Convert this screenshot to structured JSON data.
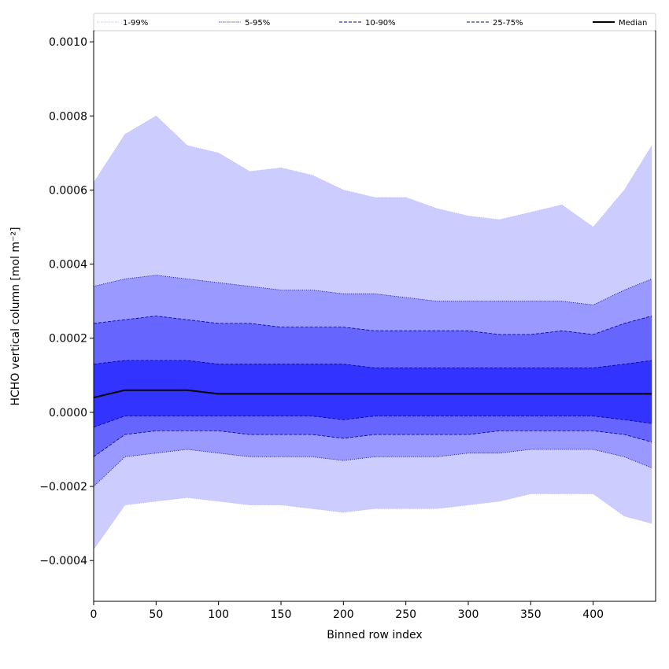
{
  "chart_data": {
    "type": "area",
    "xlabel": "Binned row index",
    "ylabel": "HCHO vertical column [mol m⁻²]",
    "xlim": [
      0,
      450
    ],
    "ylim": [
      -0.00051,
      0.00103
    ],
    "xticks": [
      0,
      50,
      100,
      150,
      200,
      250,
      300,
      350,
      400
    ],
    "xtick_labels": [
      "0",
      "50",
      "100",
      "150",
      "200",
      "250",
      "300",
      "350",
      "400"
    ],
    "yticks": [
      -0.0004,
      -0.0002,
      0.0,
      0.0002,
      0.0004,
      0.0006,
      0.0008,
      0.001
    ],
    "ytick_labels": [
      "−0.0004",
      "−0.0002",
      "0.0000",
      "0.0002",
      "0.0004",
      "0.0006",
      "0.0008",
      "0.0010"
    ],
    "grid": false,
    "legend_position": "top",
    "x": [
      0,
      25,
      50,
      75,
      100,
      125,
      150,
      175,
      200,
      225,
      250,
      275,
      300,
      325,
      350,
      375,
      400,
      425,
      447
    ],
    "series": [
      {
        "name": "1-99%",
        "style": "dotted",
        "line_color": "#b3b3ff",
        "fill_color": "#ccccff",
        "lower": [
          -0.00037,
          -0.00025,
          -0.00024,
          -0.00023,
          -0.00024,
          -0.00025,
          -0.00025,
          -0.00026,
          -0.00027,
          -0.00026,
          -0.00026,
          -0.00026,
          -0.00025,
          -0.00024,
          -0.00022,
          -0.00022,
          -0.00022,
          -0.00028,
          -0.0003
        ],
        "upper": [
          0.00062,
          0.00075,
          0.0008,
          0.00072,
          0.0007,
          0.00065,
          0.00066,
          0.00064,
          0.0006,
          0.00058,
          0.00058,
          0.00055,
          0.00053,
          0.00052,
          0.00054,
          0.00056,
          0.0005,
          0.0006,
          0.00072
        ]
      },
      {
        "name": "5-95%",
        "style": "dotted",
        "line_color": "#00008b",
        "fill_color": "#9999ff",
        "lower": [
          -0.0002,
          -0.00012,
          -0.00011,
          -0.0001,
          -0.00011,
          -0.00012,
          -0.00012,
          -0.00012,
          -0.00013,
          -0.00012,
          -0.00012,
          -0.00012,
          -0.00011,
          -0.00011,
          -0.0001,
          -0.0001,
          -0.0001,
          -0.00012,
          -0.00015
        ],
        "upper": [
          0.00034,
          0.00036,
          0.00037,
          0.00036,
          0.00035,
          0.00034,
          0.00033,
          0.00033,
          0.00032,
          0.00032,
          0.00031,
          0.0003,
          0.0003,
          0.0003,
          0.0003,
          0.0003,
          0.00029,
          0.00033,
          0.00036
        ]
      },
      {
        "name": "10-90%",
        "style": "dashed",
        "line_color": "#00008b",
        "fill_color": "#6666ff",
        "lower": [
          -0.00012,
          -6e-05,
          -5e-05,
          -5e-05,
          -5e-05,
          -6e-05,
          -6e-05,
          -6e-05,
          -7e-05,
          -6e-05,
          -6e-05,
          -6e-05,
          -6e-05,
          -5e-05,
          -5e-05,
          -5e-05,
          -5e-05,
          -6e-05,
          -8e-05
        ],
        "upper": [
          0.00024,
          0.00025,
          0.00026,
          0.00025,
          0.00024,
          0.00024,
          0.00023,
          0.00023,
          0.00023,
          0.00022,
          0.00022,
          0.00022,
          0.00022,
          0.00021,
          0.00021,
          0.00022,
          0.00021,
          0.00024,
          0.00026
        ]
      },
      {
        "name": "25-75%",
        "style": "dashed",
        "line_color": "#00008b",
        "fill_color": "#3333ff",
        "lower": [
          -4e-05,
          -1e-05,
          -1e-05,
          -1e-05,
          -1e-05,
          -1e-05,
          -1e-05,
          -1e-05,
          -2e-05,
          -1e-05,
          -1e-05,
          -1e-05,
          -1e-05,
          -1e-05,
          -1e-05,
          -1e-05,
          -1e-05,
          -2e-05,
          -3e-05
        ],
        "upper": [
          0.00013,
          0.00014,
          0.00014,
          0.00014,
          0.00013,
          0.00013,
          0.00013,
          0.00013,
          0.00013,
          0.00012,
          0.00012,
          0.00012,
          0.00012,
          0.00012,
          0.00012,
          0.00012,
          0.00012,
          0.00013,
          0.00014
        ]
      },
      {
        "name": "Median",
        "style": "solid",
        "line_color": "#000000",
        "fill_color": "",
        "values": [
          4e-05,
          6e-05,
          6e-05,
          6e-05,
          5e-05,
          5e-05,
          5e-05,
          5e-05,
          5e-05,
          5e-05,
          5e-05,
          5e-05,
          5e-05,
          5e-05,
          5e-05,
          5e-05,
          5e-05,
          5e-05,
          5e-05
        ]
      }
    ]
  }
}
